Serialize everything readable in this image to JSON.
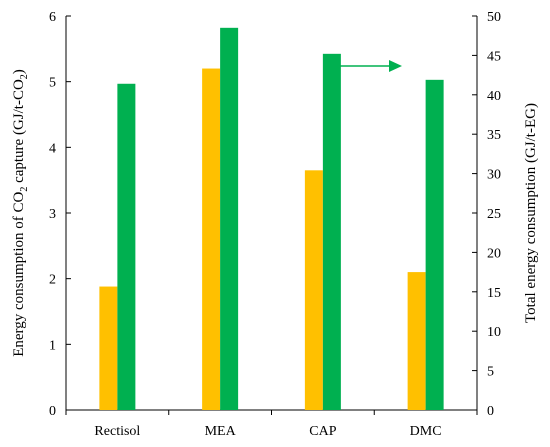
{
  "chart_data": {
    "type": "bar",
    "categories": [
      "Rectisol",
      "MEA",
      "CAP",
      "DMC"
    ],
    "series": [
      {
        "axis": "left",
        "color": "#FFC000",
        "values": [
          1.88,
          5.2,
          3.65,
          2.1
        ]
      },
      {
        "axis": "right",
        "color": "#00B050",
        "values": [
          41.4,
          48.5,
          45.2,
          41.9
        ]
      }
    ],
    "ylabel": {
      "pre": "Energy consumption of CO",
      "sub": "2",
      "mid": " capture (GJ/t-CO",
      "sub2": "2",
      "post": ")"
    },
    "ylabel_right": "Total energy consumption (GJ/t-EG)",
    "ylim": [
      0,
      6
    ],
    "ylim_right": [
      0,
      50
    ],
    "yticks": [
      "0",
      "1",
      "2",
      "3",
      "4",
      "5",
      "6"
    ],
    "yticks_right": [
      "0",
      "5",
      "10",
      "15",
      "20",
      "25",
      "30",
      "35",
      "40",
      "45",
      "50"
    ],
    "annotations": [
      {
        "type": "arrow",
        "color": "#00B050",
        "points_to": "right axis"
      }
    ],
    "grid": false,
    "legend": "none"
  }
}
